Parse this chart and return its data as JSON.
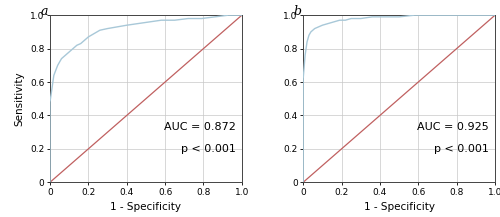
{
  "panel_a": {
    "label": "a",
    "auc_text": "AUC = 0.872",
    "p_text": "p < 0.001",
    "roc_curve": {
      "fpr": [
        0.0,
        0.0,
        0.02,
        0.04,
        0.06,
        0.08,
        0.1,
        0.12,
        0.14,
        0.16,
        0.18,
        0.2,
        0.23,
        0.26,
        0.3,
        0.35,
        0.4,
        0.46,
        0.52,
        0.58,
        0.65,
        0.72,
        0.79,
        0.86,
        0.93,
        1.0
      ],
      "tpr": [
        0.0,
        0.48,
        0.64,
        0.7,
        0.74,
        0.76,
        0.78,
        0.8,
        0.82,
        0.83,
        0.85,
        0.87,
        0.89,
        0.91,
        0.92,
        0.93,
        0.94,
        0.95,
        0.96,
        0.97,
        0.97,
        0.98,
        0.98,
        0.99,
        1.0,
        1.0
      ]
    }
  },
  "panel_b": {
    "label": "b",
    "auc_text": "AUC = 0.925",
    "p_text": "p < 0.001",
    "roc_curve": {
      "fpr": [
        0.0,
        0.0,
        0.01,
        0.02,
        0.03,
        0.04,
        0.06,
        0.08,
        0.1,
        0.13,
        0.16,
        0.19,
        0.22,
        0.25,
        0.3,
        0.36,
        0.43,
        0.5,
        0.58,
        0.66,
        0.74,
        0.82,
        0.9,
        1.0
      ],
      "tpr": [
        0.0,
        0.62,
        0.76,
        0.84,
        0.88,
        0.9,
        0.92,
        0.93,
        0.94,
        0.95,
        0.96,
        0.97,
        0.97,
        0.98,
        0.98,
        0.99,
        0.99,
        0.99,
        1.0,
        1.0,
        1.0,
        1.0,
        1.0,
        1.0
      ]
    }
  },
  "roc_line_color": "#a8c8d8",
  "diagonal_color": "#c06060",
  "xlabel": "1 - Specificity",
  "ylabel": "Sensitivity",
  "xlim": [
    0,
    1.0
  ],
  "ylim": [
    0,
    1.0
  ],
  "xticks": [
    0,
    0.2,
    0.4,
    0.6,
    0.8,
    1.0
  ],
  "yticks": [
    0,
    0.2,
    0.4,
    0.6,
    0.8,
    1.0
  ],
  "xtick_labels": [
    "0",
    "0.2",
    "0.4",
    "0.6",
    "0.8",
    "1.0"
  ],
  "ytick_labels": [
    "0",
    "0.2",
    "0.4",
    "0.6",
    "0.8",
    "1.0"
  ],
  "grid_color": "#c8c8c8",
  "background_color": "#ffffff",
  "tick_fontsize": 6.5,
  "label_fontsize": 7.5,
  "annotation_fontsize": 8,
  "panel_label_fontsize": 9
}
